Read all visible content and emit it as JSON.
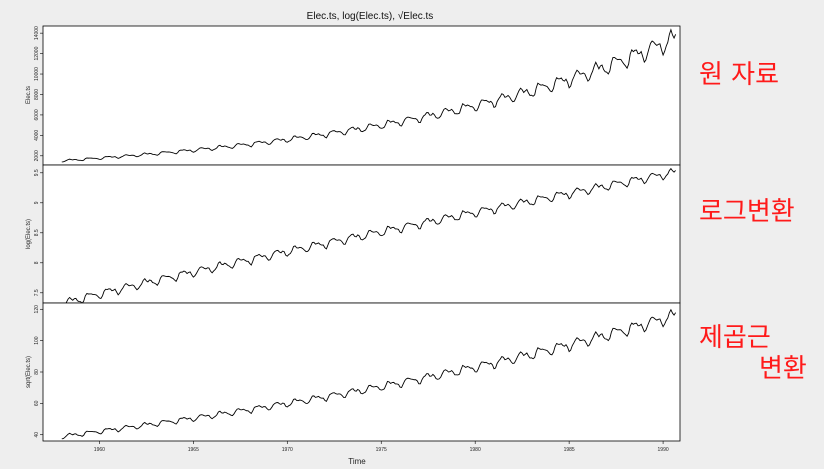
{
  "chart_data": {
    "type": "line",
    "title": "Elec.ts, log(Elec.ts), √Elec.ts",
    "xlabel": "Time",
    "x_ticks": [
      1960,
      1965,
      1970,
      1975,
      1980,
      1985,
      1990
    ],
    "x_range": [
      1957.0,
      1990.9
    ],
    "panels": [
      {
        "name": "raw",
        "ylabel": "Elec.ts",
        "yticks": [
          2000,
          4000,
          6000,
          8000,
          10000,
          12000,
          14000
        ],
        "ylim": [
          1100,
          14700
        ],
        "annotation": [
          "원 자료"
        ]
      },
      {
        "name": "log",
        "ylabel": "log(Elec.ts)",
        "yticks": [
          7.5,
          8.0,
          8.5,
          9.0,
          9.5
        ],
        "ylim": [
          7.33,
          9.63
        ],
        "annotation": [
          "로그변환"
        ]
      },
      {
        "name": "sqrt",
        "ylabel": "sqrt(Elec.ts)",
        "yticks": [
          40,
          60,
          80,
          100,
          120
        ],
        "ylim": [
          36,
          124
        ],
        "annotation": [
          "제곱근",
          "변환"
        ]
      }
    ],
    "series": {
      "name": "Elec.ts",
      "frequency": 12,
      "start": 1958.0,
      "end": 1990.67,
      "approx_start_value": 1500,
      "approx_end_value": 13500,
      "approx_peak_value": 14300,
      "seasonal_pattern": "annual cycle, peaks in mid-year, amplitude grows with level"
    }
  },
  "annotations": {
    "raw": "원 자료",
    "log": "로그변환",
    "sqrt_line1": "제곱근",
    "sqrt_line2": "변환"
  },
  "colors": {
    "background": "#eeeeee",
    "panel": "#ffffff",
    "line": "#000000",
    "annotation": "#ff1a1a"
  }
}
